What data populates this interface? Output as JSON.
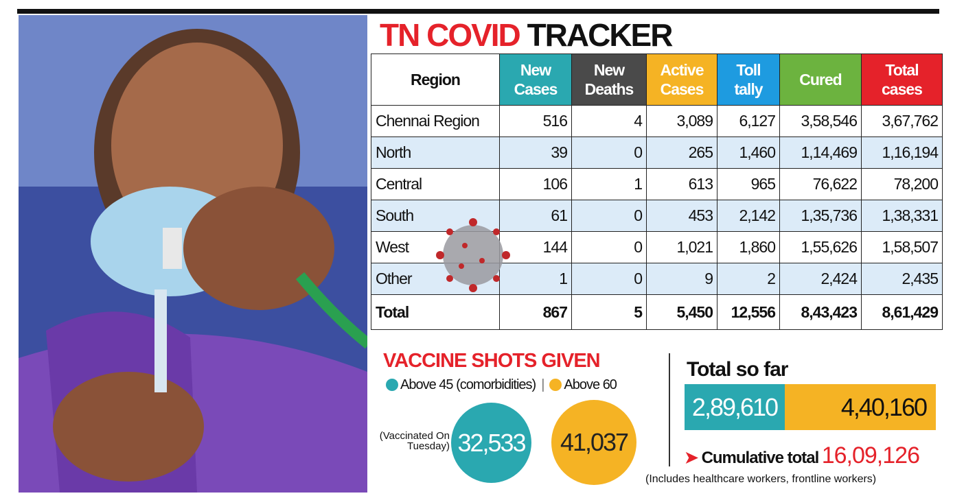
{
  "title": {
    "highlight": "TN COVID",
    "rest": "TRACKER"
  },
  "table": {
    "header": [
      "Region",
      "New Cases",
      "New Deaths",
      "Active Cases",
      "Toll tally",
      "Cured",
      "Total cases"
    ],
    "rows": [
      [
        "Chennai Region",
        "516",
        "4",
        "3,089",
        "6,127",
        "3,58,546",
        "3,67,762"
      ],
      [
        "North",
        "39",
        "0",
        "265",
        "1,460",
        "1,14,469",
        "1,16,194"
      ],
      [
        "Central",
        "106",
        "1",
        "613",
        "965",
        "76,622",
        "78,200"
      ],
      [
        "South",
        "61",
        "0",
        "453",
        "2,142",
        "1,35,736",
        "1,38,331"
      ],
      [
        "West",
        "144",
        "0",
        "1,021",
        "1,860",
        "1,55,626",
        "1,58,507"
      ],
      [
        "Other",
        "1",
        "0",
        "9",
        "2",
        "2,424",
        "2,435"
      ],
      [
        "Total",
        "867",
        "5",
        "5,450",
        "12,556",
        "8,43,423",
        "8,61,429"
      ]
    ]
  },
  "vaccine": {
    "title": "VACCINE SHOTS GIVEN",
    "legend": [
      "Above 45 (comorbidities)",
      "Above 60"
    ],
    "note": "(Vaccinated On Tuesday)",
    "values": [
      "32,533",
      "41,037"
    ]
  },
  "total": {
    "title": "Total so far",
    "values": [
      "2,89,610",
      "4,40,160"
    ],
    "cumulative_label": "Cumulative total",
    "cumulative_value": "16,09,126",
    "footnote": "(Includes healthcare workers, frontline workers)"
  }
}
